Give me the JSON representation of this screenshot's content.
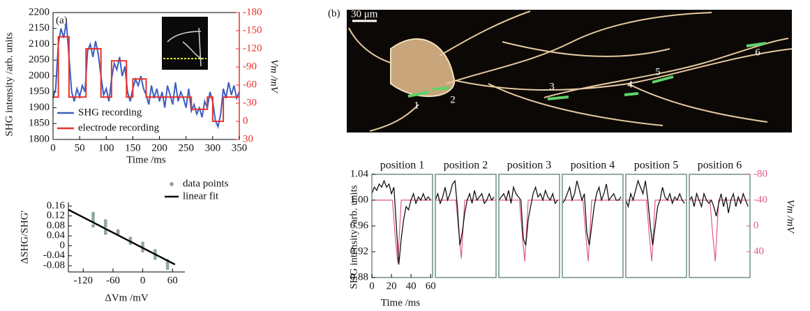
{
  "panel_labels": {
    "a": "(a)",
    "b": "(b)"
  },
  "image": {
    "scale_bar": "30 μm",
    "markers": [
      "1",
      "2",
      "3",
      "4",
      "5",
      "6"
    ]
  },
  "chart_data": [
    {
      "type": "line",
      "xlabel": "Time /ms",
      "ylabel": "SHG intensity /arb. units",
      "y2label": "Vm /mV",
      "xlim": [
        0,
        350
      ],
      "xticks": [
        0,
        50,
        100,
        150,
        200,
        250,
        300,
        350
      ],
      "ylim": [
        1800,
        2200
      ],
      "yticks": [
        1800,
        1850,
        1900,
        1950,
        2000,
        2050,
        2100,
        2150,
        2200
      ],
      "y2lim": [
        30,
        -180
      ],
      "y2ticks": [
        -180,
        -150,
        -120,
        -90,
        -60,
        -30,
        0,
        30
      ],
      "y2color": "#e8312b",
      "legend": "lower left",
      "series": [
        {
          "name": "SHG recording",
          "color": "#3b5fc0",
          "x": [
            0,
            5,
            10,
            15,
            20,
            25,
            30,
            35,
            40,
            45,
            50,
            55,
            60,
            65,
            70,
            75,
            80,
            85,
            90,
            95,
            100,
            105,
            110,
            115,
            120,
            125,
            130,
            135,
            140,
            145,
            150,
            155,
            160,
            165,
            170,
            175,
            180,
            185,
            190,
            195,
            200,
            205,
            210,
            215,
            220,
            225,
            230,
            235,
            240,
            245,
            250,
            255,
            260,
            265,
            270,
            275,
            280,
            285,
            290,
            295,
            300,
            305,
            310,
            315,
            320,
            325,
            330,
            335,
            340,
            345,
            350
          ],
          "values": [
            1930,
            1960,
            2100,
            2150,
            2120,
            2170,
            2060,
            1950,
            1920,
            1960,
            1935,
            1970,
            1950,
            2080,
            2100,
            2060,
            2110,
            2070,
            2000,
            1940,
            1960,
            1920,
            1990,
            2040,
            2020,
            2060,
            2000,
            2030,
            1950,
            1920,
            1960,
            1990,
            1970,
            2000,
            1960,
            1940,
            1910,
            1970,
            1930,
            1960,
            1920,
            1950,
            1900,
            1970,
            1940,
            1910,
            1980,
            1920,
            1950,
            1930,
            1900,
            1960,
            1890,
            1910,
            1880,
            1900,
            1870,
            1920,
            1900,
            1950,
            1920,
            1860,
            1840,
            1880,
            1960,
            1930,
            1980,
            1940,
            1970,
            1930,
            1950
          ]
        },
        {
          "name": "electrode recording",
          "color": "#e8312b",
          "axis": "y2",
          "x": [
            0,
            10,
            10,
            30,
            30,
            62,
            62,
            90,
            90,
            110,
            110,
            138,
            138,
            150,
            150,
            175,
            175,
            260,
            260,
            290,
            290,
            300,
            300,
            320,
            320,
            350
          ],
          "values": [
            -40,
            -40,
            -140,
            -140,
            -40,
            -40,
            -120,
            -120,
            -40,
            -40,
            -100,
            -100,
            -40,
            -40,
            -70,
            -70,
            -40,
            -40,
            -20,
            -20,
            -40,
            -40,
            0,
            0,
            -40,
            -40
          ]
        }
      ]
    },
    {
      "type": "scatter",
      "xlabel": "ΔVm /mV",
      "ylabel": "ΔSHG/SHG′",
      "xlim": [
        -150,
        85
      ],
      "xticks": [
        -120,
        -60,
        0,
        60
      ],
      "ylim": [
        -0.105,
        0.175
      ],
      "yticks": [
        -0.08,
        -0.04,
        0,
        0.04,
        0.08,
        0.12,
        0.16
      ],
      "legend": "upper right",
      "series": [
        {
          "name": "data points",
          "type": "scatter",
          "color": "#8fa7a2",
          "x": [
            -100,
            -100,
            -100,
            -100,
            -100,
            -75,
            -75,
            -75,
            -75,
            -75,
            -50,
            -50,
            -50,
            -25,
            -25,
            -25,
            0,
            0,
            0,
            0,
            25,
            25,
            25,
            25,
            50,
            50,
            50,
            50
          ],
          "values": [
            0.13,
            0.12,
            0.11,
            0.1,
            0.08,
            0.1,
            0.09,
            0.08,
            0.06,
            0.05,
            0.06,
            0.05,
            0.055,
            0.03,
            0.02,
            0.01,
            0,
            -0.01,
            -0.02,
            0.01,
            -0.03,
            -0.04,
            -0.05,
            -0.02,
            -0.06,
            -0.07,
            -0.08,
            -0.09
          ]
        },
        {
          "name": "linear fit",
          "type": "line",
          "color": "#000000",
          "x": [
            -150,
            65
          ],
          "values": [
            0.145,
            -0.075
          ]
        }
      ]
    },
    {
      "type": "line",
      "xlabel": "Time /ms",
      "ylabel": "SHG intensity /arb. units",
      "y2label": "Vm /mV",
      "xlim": [
        0,
        62
      ],
      "xticks": [
        0,
        20,
        40,
        60
      ],
      "ylim": [
        0.88,
        1.04
      ],
      "yticks": [
        0.88,
        0.92,
        0.96,
        {
          "value": 1,
          "label": "1.00"
        },
        1.04
      ],
      "y2lim": [
        80,
        -80
      ],
      "y2ticks": [
        -80,
        -40,
        0,
        40
      ],
      "y2color": "#e05a80",
      "panels": [
        {
          "title": "position 1",
          "series": [
            {
              "name": "electrode recording",
              "color": "#e05a80",
              "axis": "y2",
              "x": [
                0,
                21,
                24,
                26.5,
                30,
                62
              ],
              "values": [
                -40,
                -40,
                20,
                58,
                -40,
                -40
              ]
            },
            {
              "name": "SHG recording",
              "color": "#111111",
              "x": [
                0,
                2.5,
                5,
                7.5,
                10,
                12.5,
                15,
                17.5,
                20,
                22.5,
                25,
                27.5,
                30,
                32.5,
                35,
                37.5,
                40,
                42.5,
                45,
                47.5,
                50,
                52.5,
                55,
                57.5,
                60
              ],
              "values": [
                1.01,
                1.02,
                1.015,
                1.025,
                1.02,
                1.03,
                1.02,
                1.025,
                1.01,
                1.02,
                0.96,
                0.9,
                0.94,
                0.97,
                0.99,
                0.985,
                1,
                1.01,
                0.995,
                1.005,
                1,
                1.01,
                1,
                1.005,
                1
              ]
            }
          ]
        },
        {
          "title": "position 2",
          "series": [
            {
              "name": "electrode recording",
              "color": "#e05a80",
              "axis": "y2",
              "x": [
                0,
                21,
                24,
                26.5,
                30,
                62
              ],
              "values": [
                -40,
                -40,
                10,
                50,
                -40,
                -40
              ]
            },
            {
              "name": "SHG recording",
              "color": "#111111",
              "x": [
                0,
                2.5,
                5,
                7.5,
                10,
                12.5,
                15,
                17.5,
                20,
                22.5,
                25,
                27.5,
                30,
                32.5,
                35,
                37.5,
                40,
                42.5,
                45,
                47.5,
                50,
                52.5,
                55,
                57.5,
                60
              ],
              "values": [
                1,
                1.01,
                0.995,
                1.005,
                1.02,
                1,
                1.01,
                1.025,
                1.03,
                0.99,
                0.93,
                0.95,
                0.98,
                1,
                1.01,
                0.995,
                1.015,
                1,
                1.005,
                1.01,
                0.995,
                1,
                1.01,
                1,
                1.005
              ]
            }
          ]
        },
        {
          "title": "position 3",
          "series": [
            {
              "name": "electrode recording",
              "color": "#e05a80",
              "axis": "y2",
              "x": [
                0,
                21,
                24,
                26.5,
                30,
                62
              ],
              "values": [
                -40,
                -40,
                15,
                55,
                -40,
                -40
              ]
            },
            {
              "name": "SHG recording",
              "color": "#111111",
              "x": [
                0,
                2.5,
                5,
                7.5,
                10,
                12.5,
                15,
                17.5,
                20,
                22.5,
                25,
                27.5,
                30,
                32.5,
                35,
                37.5,
                40,
                42.5,
                45,
                47.5,
                50,
                52.5,
                55,
                57.5,
                60
              ],
              "values": [
                1,
                1.005,
                1.01,
                1,
                1.015,
                0.995,
                1.02,
                1.01,
                1.005,
                1,
                0.94,
                0.93,
                0.97,
                0.99,
                1.01,
                1.02,
                1.005,
                1.01,
                1,
                1.015,
                1.005,
                1,
                1.01,
                0.995,
                1
              ]
            }
          ]
        },
        {
          "title": "position 4",
          "series": [
            {
              "name": "electrode recording",
              "color": "#e05a80",
              "axis": "y2",
              "x": [
                0,
                21,
                24,
                26.5,
                30,
                62
              ],
              "values": [
                -40,
                -40,
                15,
                55,
                -40,
                -40
              ]
            },
            {
              "name": "SHG recording",
              "color": "#111111",
              "x": [
                0,
                2.5,
                5,
                7.5,
                10,
                12.5,
                15,
                17.5,
                20,
                22.5,
                25,
                27.5,
                30,
                32.5,
                35,
                37.5,
                40,
                42.5,
                45,
                47.5,
                50,
                52.5,
                55,
                57.5,
                60
              ],
              "values": [
                0.995,
                1,
                1.01,
                1.02,
                1,
                1.01,
                1.03,
                1.015,
                1,
                1.01,
                0.95,
                0.93,
                0.96,
                0.99,
                1.01,
                1.02,
                1,
                1.01,
                1.025,
                1,
                1.005,
                1.01,
                1,
                1,
                1.005
              ]
            }
          ]
        },
        {
          "title": "position 5",
          "series": [
            {
              "name": "electrode recording",
              "color": "#e05a80",
              "axis": "y2",
              "x": [
                0,
                21,
                24,
                26.5,
                30,
                62
              ],
              "values": [
                -40,
                -40,
                15,
                55,
                -40,
                -40
              ]
            },
            {
              "name": "SHG recording",
              "color": "#111111",
              "x": [
                0,
                2.5,
                5,
                7.5,
                10,
                12.5,
                15,
                17.5,
                20,
                22.5,
                25,
                27.5,
                30,
                32.5,
                35,
                37.5,
                40,
                42.5,
                45,
                47.5,
                50,
                52.5,
                55,
                57.5,
                60
              ],
              "values": [
                1,
                0.99,
                1.01,
                1,
                1.015,
                1.03,
                1.02,
                1.01,
                1.03,
                1,
                0.96,
                0.93,
                0.96,
                0.99,
                1,
                1.02,
                1.005,
                1,
                1.01,
                0.995,
                1.005,
                1,
                1.01,
                1,
                0.995
              ]
            }
          ]
        },
        {
          "title": "position 6",
          "series": [
            {
              "name": "electrode recording",
              "color": "#e05a80",
              "axis": "y2",
              "x": [
                0,
                21,
                24,
                26.5,
                30,
                62
              ],
              "values": [
                -40,
                -40,
                15,
                55,
                -40,
                -40
              ]
            },
            {
              "name": "SHG recording",
              "color": "#111111",
              "x": [
                0,
                2.5,
                5,
                7.5,
                10,
                12.5,
                15,
                17.5,
                20,
                22.5,
                25,
                27.5,
                30,
                32.5,
                35,
                37.5,
                40,
                42.5,
                45,
                47.5,
                50,
                52.5,
                55,
                57.5,
                60
              ],
              "values": [
                1,
                1.005,
                0.99,
                1.01,
                1,
                0.99,
                1.01,
                1,
                0.995,
                1,
                0.99,
                0.975,
                0.995,
                1.01,
                0.99,
                1.005,
                0.98,
                1,
                1.01,
                0.99,
                1.005,
                0.995,
                1.01,
                1,
                0.99
              ]
            }
          ]
        }
      ]
    }
  ]
}
